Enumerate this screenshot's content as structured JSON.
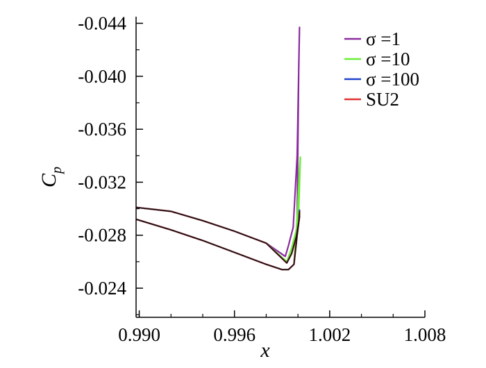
{
  "chart_data": {
    "type": "line",
    "title": "",
    "xlabel": "x",
    "ylabel": {
      "main": "C",
      "sub": "p"
    },
    "xlim": [
      0.9898,
      1.008
    ],
    "ylim": [
      -0.0218,
      -0.0445
    ],
    "y_inverted": true,
    "grid": false,
    "legend_position": "top-right",
    "x_ticks": [
      {
        "value": 0.99,
        "label": "0.990"
      },
      {
        "value": 0.996,
        "label": "0.996"
      },
      {
        "value": 1.002,
        "label": "1.002"
      },
      {
        "value": 1.008,
        "label": "1.008"
      }
    ],
    "y_ticks": [
      {
        "value": -0.044,
        "label": "-0.044"
      },
      {
        "value": -0.04,
        "label": "-0.040"
      },
      {
        "value": -0.036,
        "label": "-0.036"
      },
      {
        "value": -0.032,
        "label": "-0.032"
      },
      {
        "value": -0.028,
        "label": "-0.028"
      },
      {
        "value": -0.024,
        "label": "-0.024"
      }
    ],
    "series": [
      {
        "name": "σ =1",
        "color": "#8a2a9e",
        "x": [
          0.9898,
          0.992,
          0.994,
          0.996,
          0.998,
          0.999,
          0.9994,
          0.99975,
          0.99995,
          1.00005,
          1.0001,
          0.99995,
          0.9997,
          0.9994,
          0.9992,
          0.998,
          0.996,
          0.994,
          0.992,
          0.9898
        ],
        "y": [
          -0.0292,
          -0.0284,
          -0.0276,
          -0.0267,
          -0.0258,
          -0.0254,
          -0.0254,
          -0.0258,
          -0.0292,
          -0.0408,
          -0.0437,
          -0.034,
          -0.0286,
          -0.0272,
          -0.0264,
          -0.0274,
          -0.0283,
          -0.0291,
          -0.0298,
          -0.0301
        ]
      },
      {
        "name": "σ =10",
        "color": "#66ee33",
        "x": [
          0.9898,
          0.992,
          0.994,
          0.996,
          0.998,
          0.999,
          0.9994,
          0.99975,
          0.99995,
          1.0001,
          1.00015,
          1.00005,
          0.9999,
          0.9996,
          0.9993,
          0.998,
          0.996,
          0.994,
          0.992,
          0.9898
        ],
        "y": [
          -0.0292,
          -0.0284,
          -0.0276,
          -0.0267,
          -0.0258,
          -0.0254,
          -0.0254,
          -0.0258,
          -0.0292,
          -0.033,
          -0.0339,
          -0.03,
          -0.0284,
          -0.027,
          -0.026,
          -0.0274,
          -0.0283,
          -0.0291,
          -0.0298,
          -0.0301
        ]
      },
      {
        "name": "σ =100",
        "color": "#2040cc",
        "x": [
          0.9898,
          0.992,
          0.994,
          0.996,
          0.998,
          0.999,
          0.9994,
          0.99975,
          0.99995,
          1.0001,
          1.0001,
          1.00005,
          0.9999,
          0.9996,
          0.9993,
          0.998,
          0.996,
          0.994,
          0.992,
          0.9898
        ],
        "y": [
          -0.0292,
          -0.0284,
          -0.0276,
          -0.0267,
          -0.0258,
          -0.0254,
          -0.0254,
          -0.0258,
          -0.028,
          -0.0294,
          -0.0299,
          -0.029,
          -0.0279,
          -0.0266,
          -0.0259,
          -0.0274,
          -0.0283,
          -0.0291,
          -0.0298,
          -0.0301
        ]
      },
      {
        "name": "SU2",
        "color": "#e03030",
        "x": [
          0.9898,
          0.992,
          0.994,
          0.996,
          0.998,
          0.999,
          0.9994,
          0.99975,
          0.99995,
          1.0001,
          1.0001,
          1.00005,
          0.9999,
          0.9996,
          0.9993,
          0.998,
          0.996,
          0.994,
          0.992,
          0.9898
        ],
        "y": [
          -0.0292,
          -0.0284,
          -0.0276,
          -0.0267,
          -0.0258,
          -0.0254,
          -0.0254,
          -0.0258,
          -0.028,
          -0.0294,
          -0.0298,
          -0.029,
          -0.0279,
          -0.0266,
          -0.0259,
          -0.0274,
          -0.0283,
          -0.0291,
          -0.0298,
          -0.0301
        ]
      },
      {
        "name": "",
        "color": "#111111",
        "x": [
          0.9898,
          0.992,
          0.994,
          0.996,
          0.998,
          0.999,
          0.9994,
          0.99975,
          0.99995,
          1.0001,
          1.0001,
          1.00005,
          0.9999,
          0.9996,
          0.9993,
          0.998,
          0.996,
          0.994,
          0.992,
          0.9898
        ],
        "y": [
          -0.0292,
          -0.0284,
          -0.0276,
          -0.0267,
          -0.0258,
          -0.0254,
          -0.0254,
          -0.0258,
          -0.028,
          -0.0294,
          -0.0298,
          -0.029,
          -0.0279,
          -0.0266,
          -0.0259,
          -0.0274,
          -0.0283,
          -0.0291,
          -0.0298,
          -0.0301
        ]
      }
    ]
  }
}
